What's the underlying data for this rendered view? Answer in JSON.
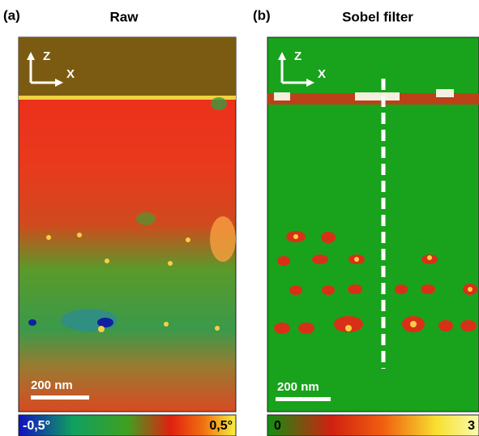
{
  "panels": [
    {
      "label": "(a)",
      "title": "Raw",
      "axes": {
        "z": "Z",
        "x": "X"
      },
      "scale_bar": "200 nm",
      "colorbar": {
        "min": "-0,5°",
        "max": "0,5°"
      }
    },
    {
      "label": "(b)",
      "title": "Sobel filter",
      "axes": {
        "z": "Z",
        "x": "X"
      },
      "scale_bar": "200 nm",
      "colorbar": {
        "min": "0",
        "max": "3"
      }
    }
  ]
}
